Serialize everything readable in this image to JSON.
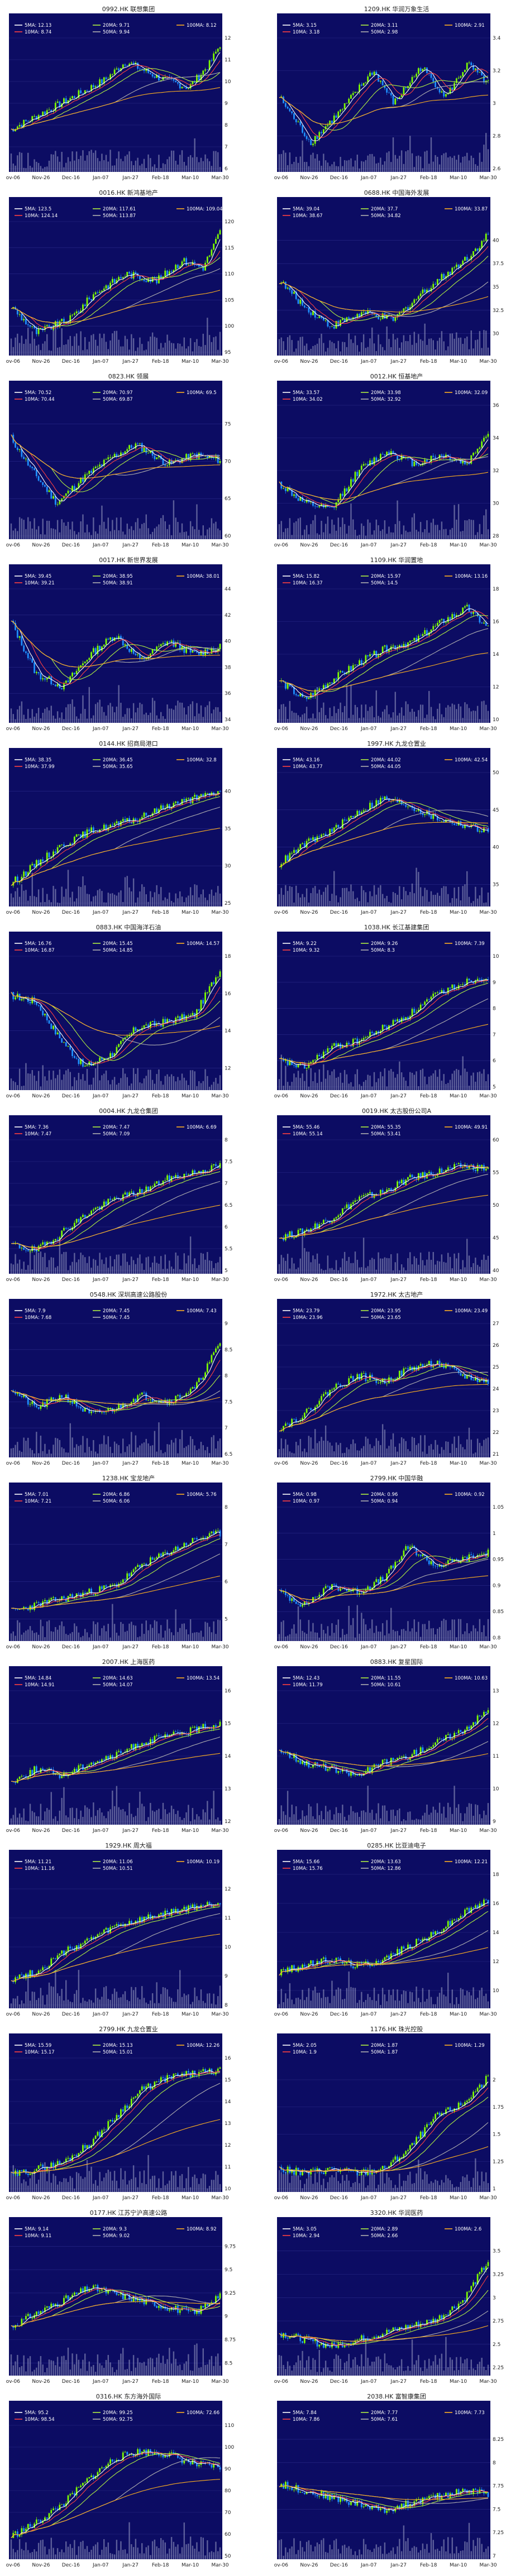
{
  "colors": {
    "bg": "#0c0c63",
    "up": "#7CFC00",
    "down": "#1E90FF",
    "volume": "#9ea3c8",
    "ma5": "#ffffff",
    "ma10": "#ff4040",
    "ma20": "#b0f040",
    "ma50": "#b0b0b0",
    "ma100": "#ffb020"
  },
  "dates": [
    "Nov-06",
    "Nov-26",
    "Dec-16",
    "Jan-07",
    "Jan-27",
    "Feb-18",
    "Mar-10",
    "Mar-30"
  ],
  "charts": [
    {
      "title": "0992.HK 联想集团",
      "ma5": "12.13",
      "ma10": "8.74",
      "ma20": "9.71",
      "ma50": "9.94",
      "ma100": "8.12",
      "ylim": [
        6,
        12
      ],
      "path": [
        [
          0,
          0.3
        ],
        [
          0.18,
          0.45
        ],
        [
          0.3,
          0.55
        ],
        [
          0.45,
          0.68
        ],
        [
          0.55,
          0.82
        ],
        [
          0.7,
          0.7
        ],
        [
          0.85,
          0.62
        ],
        [
          0.95,
          0.8
        ],
        [
          1,
          0.95
        ]
      ]
    },
    {
      "title": "1209.HK 华润万象生活",
      "ma5": "3.15",
      "ma10": "3.18",
      "ma20": "3.11",
      "ma50": "2.98",
      "ma100": "2.91",
      "ylim": [
        2.6,
        3.4
      ],
      "path": [
        [
          0,
          0.55
        ],
        [
          0.15,
          0.2
        ],
        [
          0.3,
          0.45
        ],
        [
          0.45,
          0.75
        ],
        [
          0.55,
          0.5
        ],
        [
          0.68,
          0.78
        ],
        [
          0.8,
          0.55
        ],
        [
          0.9,
          0.8
        ],
        [
          1,
          0.65
        ]
      ]
    },
    {
      "title": "0016.HK 新鸿基地产",
      "ma5": "123.5",
      "ma10": "124.14",
      "ma20": "117.61",
      "ma50": "113.87",
      "ma100": "109.04",
      "ylim": [
        95,
        120
      ],
      "path": [
        [
          0,
          0.35
        ],
        [
          0.12,
          0.15
        ],
        [
          0.28,
          0.25
        ],
        [
          0.4,
          0.45
        ],
        [
          0.55,
          0.6
        ],
        [
          0.7,
          0.55
        ],
        [
          0.82,
          0.7
        ],
        [
          0.92,
          0.65
        ],
        [
          1,
          0.92
        ]
      ]
    },
    {
      "title": "0688.HK 中国海外发展",
      "ma5": "39.04",
      "ma10": "38.67",
      "ma20": "37.7",
      "ma50": "34.82",
      "ma100": "33.87",
      "ylim": [
        28,
        42
      ],
      "path": [
        [
          0,
          0.55
        ],
        [
          0.12,
          0.35
        ],
        [
          0.25,
          0.2
        ],
        [
          0.4,
          0.3
        ],
        [
          0.55,
          0.25
        ],
        [
          0.68,
          0.45
        ],
        [
          0.8,
          0.6
        ],
        [
          0.92,
          0.75
        ],
        [
          1,
          0.9
        ]
      ]
    },
    {
      "title": "0823.HK 领展",
      "ma5": "70.52",
      "ma10": "70.44",
      "ma20": "70.97",
      "ma50": "69.87",
      "ma100": "69.5",
      "ylim": [
        60,
        77.5
      ],
      "path": [
        [
          0,
          0.75
        ],
        [
          0.1,
          0.5
        ],
        [
          0.22,
          0.25
        ],
        [
          0.35,
          0.45
        ],
        [
          0.48,
          0.6
        ],
        [
          0.6,
          0.7
        ],
        [
          0.75,
          0.55
        ],
        [
          0.88,
          0.62
        ],
        [
          1,
          0.58
        ]
      ]
    },
    {
      "title": "0012.HK 恒基地产",
      "ma5": "33.57",
      "ma10": "34.02",
      "ma20": "33.98",
      "ma50": "32.92",
      "ma100": "32.09",
      "ylim": [
        28,
        36
      ],
      "path": [
        [
          0,
          0.4
        ],
        [
          0.12,
          0.25
        ],
        [
          0.25,
          0.2
        ],
        [
          0.38,
          0.5
        ],
        [
          0.52,
          0.65
        ],
        [
          0.65,
          0.55
        ],
        [
          0.78,
          0.62
        ],
        [
          0.9,
          0.55
        ],
        [
          1,
          0.8
        ]
      ]
    },
    {
      "title": "0017.HK 新世界发展",
      "ma5": "39.45",
      "ma10": "39.21",
      "ma20": "38.95",
      "ma50": "38.91",
      "ma100": "38.01",
      "ylim": [
        34,
        44
      ],
      "path": [
        [
          0,
          0.75
        ],
        [
          0.12,
          0.35
        ],
        [
          0.25,
          0.25
        ],
        [
          0.38,
          0.5
        ],
        [
          0.5,
          0.65
        ],
        [
          0.62,
          0.45
        ],
        [
          0.75,
          0.6
        ],
        [
          0.88,
          0.5
        ],
        [
          1,
          0.55
        ]
      ]
    },
    {
      "title": "1109.HK 华润置地",
      "ma5": "15.82",
      "ma10": "16.37",
      "ma20": "15.97",
      "ma50": "14.5",
      "ma100": "13.16",
      "ylim": [
        10,
        18
      ],
      "path": [
        [
          0,
          0.3
        ],
        [
          0.12,
          0.15
        ],
        [
          0.25,
          0.3
        ],
        [
          0.4,
          0.45
        ],
        [
          0.52,
          0.55
        ],
        [
          0.65,
          0.6
        ],
        [
          0.78,
          0.75
        ],
        [
          0.9,
          0.85
        ],
        [
          1,
          0.7
        ]
      ]
    },
    {
      "title": "0144.HK 招商局港口",
      "ma5": "38.35",
      "ma10": "37.99",
      "ma20": "36.45",
      "ma50": "35.65",
      "ma100": "32.8",
      "ylim": [
        25,
        42.5
      ],
      "path": [
        [
          0,
          0.15
        ],
        [
          0.12,
          0.3
        ],
        [
          0.25,
          0.45
        ],
        [
          0.38,
          0.55
        ],
        [
          0.5,
          0.6
        ],
        [
          0.62,
          0.65
        ],
        [
          0.75,
          0.75
        ],
        [
          0.88,
          0.8
        ],
        [
          1,
          0.85
        ]
      ]
    },
    {
      "title": "1997.HK 九龙仓置业",
      "ma5": "43.16",
      "ma10": "43.77",
      "ma20": "44.02",
      "ma50": "44.05",
      "ma100": "42.54",
      "ylim": [
        32.5,
        50
      ],
      "path": [
        [
          0,
          0.3
        ],
        [
          0.12,
          0.45
        ],
        [
          0.25,
          0.55
        ],
        [
          0.38,
          0.7
        ],
        [
          0.5,
          0.8
        ],
        [
          0.62,
          0.75
        ],
        [
          0.75,
          0.65
        ],
        [
          0.88,
          0.6
        ],
        [
          1,
          0.55
        ]
      ]
    },
    {
      "title": "0883.HK 中国海洋石油",
      "ma5": "16.76",
      "ma10": "16.87",
      "ma20": "15.45",
      "ma50": "14.85",
      "ma100": "14.57",
      "ylim": [
        11,
        18
      ],
      "path": [
        [
          0,
          0.7
        ],
        [
          0.12,
          0.65
        ],
        [
          0.22,
          0.4
        ],
        [
          0.35,
          0.15
        ],
        [
          0.48,
          0.25
        ],
        [
          0.6,
          0.45
        ],
        [
          0.75,
          0.5
        ],
        [
          0.88,
          0.55
        ],
        [
          1,
          0.9
        ]
      ]
    },
    {
      "title": "1038.HK 长江基建集团",
      "ma5": "9.22",
      "ma10": "9.32",
      "ma20": "9.26",
      "ma50": "8.3",
      "ma100": "7.39",
      "ylim": [
        5,
        10
      ],
      "path": [
        [
          0,
          0.2
        ],
        [
          0.12,
          0.15
        ],
        [
          0.25,
          0.3
        ],
        [
          0.38,
          0.35
        ],
        [
          0.5,
          0.45
        ],
        [
          0.62,
          0.55
        ],
        [
          0.75,
          0.7
        ],
        [
          0.88,
          0.8
        ],
        [
          1,
          0.85
        ]
      ]
    },
    {
      "title": "0004.HK 九龙仓集团",
      "ma5": "7.36",
      "ma10": "7.47",
      "ma20": "7.47",
      "ma50": "7.09",
      "ma100": "6.69",
      "ylim": [
        5,
        8
      ],
      "path": [
        [
          0,
          0.2
        ],
        [
          0.12,
          0.15
        ],
        [
          0.25,
          0.3
        ],
        [
          0.38,
          0.45
        ],
        [
          0.5,
          0.55
        ],
        [
          0.62,
          0.6
        ],
        [
          0.75,
          0.7
        ],
        [
          0.88,
          0.75
        ],
        [
          1,
          0.8
        ]
      ]
    },
    {
      "title": "0019.HK 太古股份公司A",
      "ma5": "55.46",
      "ma10": "55.14",
      "ma20": "55.35",
      "ma50": "53.41",
      "ma100": "49.91",
      "ylim": [
        40,
        60
      ],
      "path": [
        [
          0,
          0.25
        ],
        [
          0.12,
          0.3
        ],
        [
          0.25,
          0.4
        ],
        [
          0.38,
          0.55
        ],
        [
          0.5,
          0.6
        ],
        [
          0.62,
          0.7
        ],
        [
          0.75,
          0.75
        ],
        [
          0.88,
          0.8
        ],
        [
          1,
          0.78
        ]
      ]
    },
    {
      "title": "0548.HK 深圳高速公路股份",
      "ma5": "7.9",
      "ma10": "7.68",
      "ma20": "7.45",
      "ma50": "7.45",
      "ma100": "7.43",
      "ylim": [
        6.5,
        9
      ],
      "path": [
        [
          0,
          0.5
        ],
        [
          0.12,
          0.35
        ],
        [
          0.25,
          0.45
        ],
        [
          0.38,
          0.3
        ],
        [
          0.5,
          0.35
        ],
        [
          0.62,
          0.45
        ],
        [
          0.75,
          0.4
        ],
        [
          0.88,
          0.5
        ],
        [
          1,
          0.85
        ]
      ]
    },
    {
      "title": "1972.HK 太古地产",
      "ma5": "23.79",
      "ma10": "23.96",
      "ma20": "23.95",
      "ma50": "23.65",
      "ma100": "23.49",
      "ylim": [
        21,
        27
      ],
      "path": [
        [
          0,
          0.2
        ],
        [
          0.12,
          0.3
        ],
        [
          0.25,
          0.5
        ],
        [
          0.38,
          0.6
        ],
        [
          0.5,
          0.55
        ],
        [
          0.62,
          0.65
        ],
        [
          0.75,
          0.7
        ],
        [
          0.88,
          0.6
        ],
        [
          1,
          0.55
        ]
      ]
    },
    {
      "title": "1238.HK 宝龙地产",
      "ma5": "7.01",
      "ma10": "7.21",
      "ma20": "6.86",
      "ma50": "6.06",
      "ma100": "5.76",
      "ylim": [
        4.5,
        8
      ],
      "path": [
        [
          0,
          0.2
        ],
        [
          0.12,
          0.25
        ],
        [
          0.25,
          0.3
        ],
        [
          0.38,
          0.35
        ],
        [
          0.5,
          0.4
        ],
        [
          0.62,
          0.55
        ],
        [
          0.75,
          0.65
        ],
        [
          0.88,
          0.75
        ],
        [
          1,
          0.8
        ]
      ]
    },
    {
      "title": "2799.HK 中国华融",
      "ma5": "0.98",
      "ma10": "0.97",
      "ma20": "0.96",
      "ma50": "0.94",
      "ma100": "0.92",
      "ylim": [
        0.8,
        1.05
      ],
      "path": [
        [
          0,
          0.35
        ],
        [
          0.12,
          0.25
        ],
        [
          0.25,
          0.4
        ],
        [
          0.38,
          0.35
        ],
        [
          0.5,
          0.45
        ],
        [
          0.62,
          0.7
        ],
        [
          0.75,
          0.55
        ],
        [
          0.88,
          0.6
        ],
        [
          1,
          0.65
        ]
      ]
    },
    {
      "title": "2007.HK 上海医药",
      "ma5": "14.84",
      "ma10": "14.91",
      "ma20": "14.63",
      "ma50": "14.07",
      "ma100": "13.54",
      "ylim": [
        12,
        16
      ],
      "path": [
        [
          0,
          0.3
        ],
        [
          0.12,
          0.4
        ],
        [
          0.25,
          0.35
        ],
        [
          0.38,
          0.45
        ],
        [
          0.5,
          0.5
        ],
        [
          0.62,
          0.6
        ],
        [
          0.75,
          0.65
        ],
        [
          0.88,
          0.7
        ],
        [
          1,
          0.75
        ]
      ]
    },
    {
      "title": "0883.HK 复星国际",
      "ma5": "12.43",
      "ma10": "11.79",
      "ma20": "11.55",
      "ma50": "10.61",
      "ma100": "10.63",
      "ylim": [
        9,
        13
      ],
      "path": [
        [
          0,
          0.55
        ],
        [
          0.12,
          0.45
        ],
        [
          0.25,
          0.4
        ],
        [
          0.38,
          0.35
        ],
        [
          0.5,
          0.45
        ],
        [
          0.62,
          0.5
        ],
        [
          0.75,
          0.6
        ],
        [
          0.88,
          0.7
        ],
        [
          1,
          0.85
        ]
      ]
    },
    {
      "title": "1929.HK 周大福",
      "ma5": "11.21",
      "ma10": "11.16",
      "ma20": "11.06",
      "ma50": "10.51",
      "ma100": "10.19",
      "ylim": [
        8,
        12.5
      ],
      "path": [
        [
          0,
          0.2
        ],
        [
          0.12,
          0.25
        ],
        [
          0.25,
          0.4
        ],
        [
          0.38,
          0.5
        ],
        [
          0.5,
          0.6
        ],
        [
          0.62,
          0.65
        ],
        [
          0.75,
          0.7
        ],
        [
          0.88,
          0.75
        ],
        [
          1,
          0.78
        ]
      ]
    },
    {
      "title": "0285.HK 比亚迪电子",
      "ma5": "15.66",
      "ma10": "15.76",
      "ma20": "13.63",
      "ma50": "12.86",
      "ma100": "12.21",
      "ylim": [
        9,
        18
      ],
      "path": [
        [
          0,
          0.25
        ],
        [
          0.12,
          0.3
        ],
        [
          0.25,
          0.35
        ],
        [
          0.38,
          0.3
        ],
        [
          0.5,
          0.35
        ],
        [
          0.62,
          0.45
        ],
        [
          0.75,
          0.55
        ],
        [
          0.88,
          0.7
        ],
        [
          1,
          0.8
        ]
      ]
    },
    {
      "title": "2799.HK 九龙仓置业",
      "ma5": "15.59",
      "ma10": "15.17",
      "ma20": "15.13",
      "ma50": "15.01",
      "ma100": "12.26",
      "ylim": [
        10,
        16
      ],
      "path": [
        [
          0,
          0.1
        ],
        [
          0.12,
          0.15
        ],
        [
          0.25,
          0.2
        ],
        [
          0.38,
          0.35
        ],
        [
          0.5,
          0.55
        ],
        [
          0.62,
          0.75
        ],
        [
          0.75,
          0.85
        ],
        [
          0.88,
          0.88
        ],
        [
          1,
          0.9
        ]
      ]
    },
    {
      "title": "1176.HK 珠光控股",
      "ma5": "2.05",
      "ma10": "1.9",
      "ma20": "1.87",
      "ma50": "1.87",
      "ma100": "1.29",
      "ylim": [
        1.0,
        2.2
      ],
      "path": [
        [
          0,
          0.15
        ],
        [
          0.12,
          0.12
        ],
        [
          0.25,
          0.15
        ],
        [
          0.38,
          0.12
        ],
        [
          0.5,
          0.15
        ],
        [
          0.62,
          0.3
        ],
        [
          0.75,
          0.55
        ],
        [
          0.88,
          0.65
        ],
        [
          1,
          0.85
        ]
      ]
    },
    {
      "title": "0177.HK 江苏宁沪高速公路",
      "ma5": "9.14",
      "ma10": "9.11",
      "ma20": "9.3",
      "ma50": "9.02",
      "ma100": "8.92",
      "ylim": [
        8.4,
        9.8
      ],
      "path": [
        [
          0,
          0.35
        ],
        [
          0.12,
          0.45
        ],
        [
          0.25,
          0.55
        ],
        [
          0.38,
          0.65
        ],
        [
          0.5,
          0.6
        ],
        [
          0.62,
          0.55
        ],
        [
          0.75,
          0.5
        ],
        [
          0.88,
          0.45
        ],
        [
          1,
          0.6
        ]
      ]
    },
    {
      "title": "3320.HK 华润医药",
      "ma5": "3.05",
      "ma10": "2.94",
      "ma20": "2.89",
      "ma50": "2.66",
      "ma100": "2.6",
      "ylim": [
        2.2,
        3.6
      ],
      "path": [
        [
          0,
          0.3
        ],
        [
          0.12,
          0.25
        ],
        [
          0.25,
          0.2
        ],
        [
          0.38,
          0.25
        ],
        [
          0.5,
          0.3
        ],
        [
          0.62,
          0.35
        ],
        [
          0.75,
          0.4
        ],
        [
          0.88,
          0.55
        ],
        [
          1,
          0.85
        ]
      ]
    },
    {
      "title": "0316.HK 东方海外国际",
      "ma5": "95.2",
      "ma10": "98.54",
      "ma20": "99.25",
      "ma50": "92.75",
      "ma100": "72.66",
      "ylim": [
        50,
        110
      ],
      "path": [
        [
          0,
          0.15
        ],
        [
          0.12,
          0.25
        ],
        [
          0.25,
          0.4
        ],
        [
          0.38,
          0.6
        ],
        [
          0.5,
          0.75
        ],
        [
          0.62,
          0.8
        ],
        [
          0.75,
          0.78
        ],
        [
          0.88,
          0.7
        ],
        [
          1,
          0.68
        ]
      ]
    },
    {
      "title": "2038.HK 富智康集团",
      "ma5": "7.84",
      "ma10": "7.86",
      "ma20": "7.77",
      "ma50": "7.61",
      "ma100": "7.73",
      "ylim": [
        7.0,
        8.4
      ],
      "path": [
        [
          0,
          0.55
        ],
        [
          0.12,
          0.5
        ],
        [
          0.25,
          0.45
        ],
        [
          0.38,
          0.4
        ],
        [
          0.5,
          0.35
        ],
        [
          0.62,
          0.4
        ],
        [
          0.75,
          0.45
        ],
        [
          0.88,
          0.5
        ],
        [
          1,
          0.48
        ]
      ]
    }
  ]
}
